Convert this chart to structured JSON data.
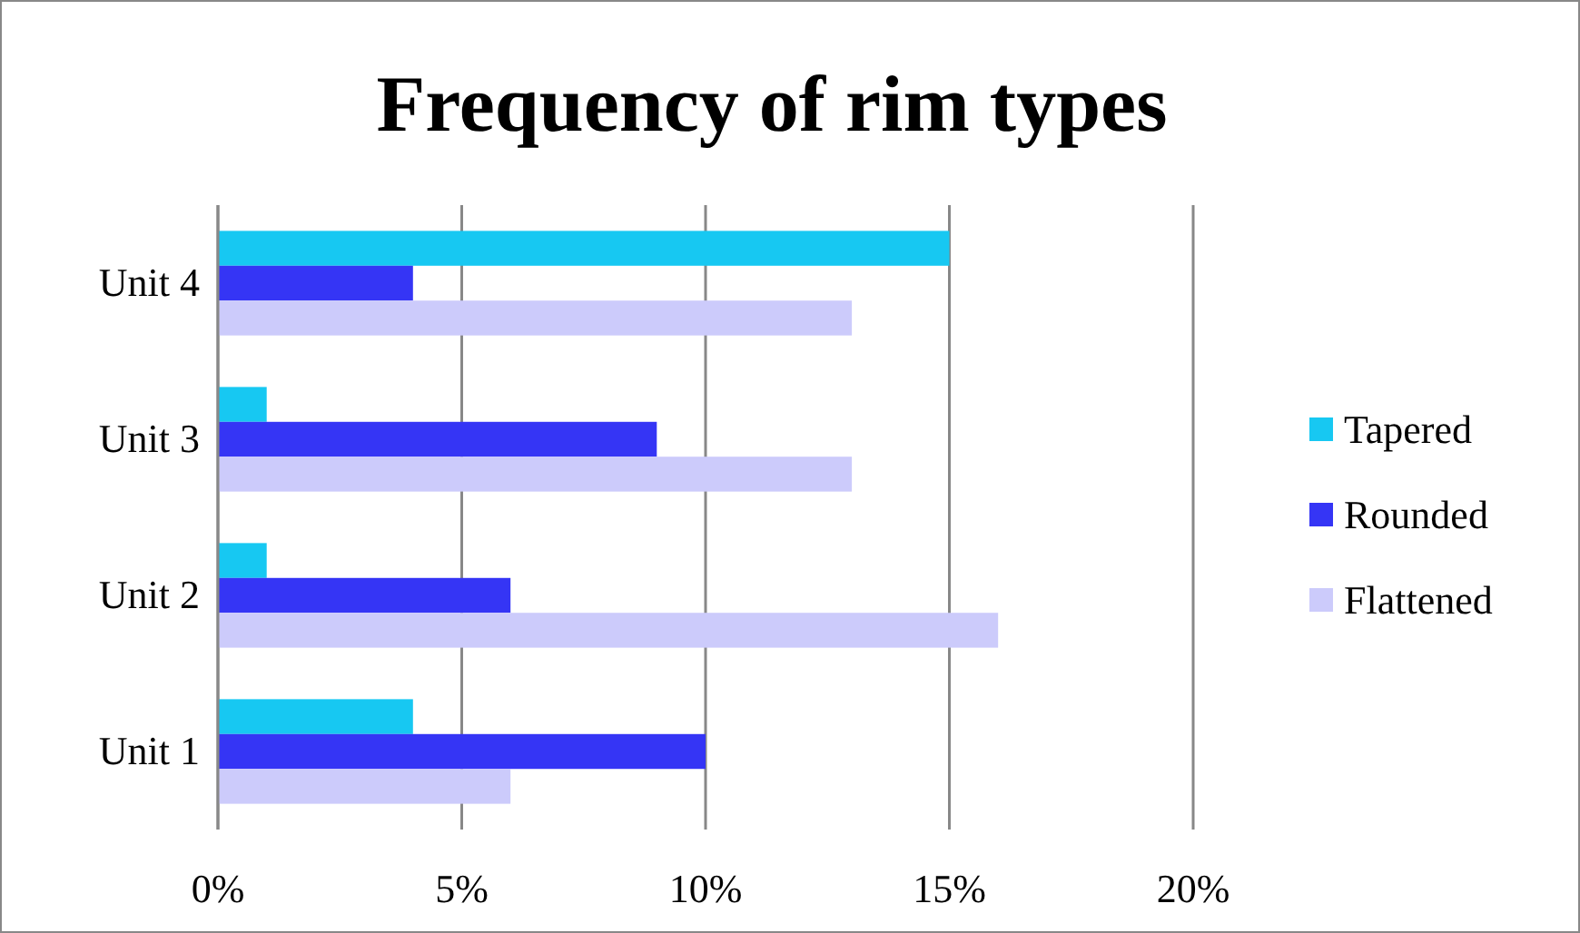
{
  "chart_data": {
    "type": "bar",
    "orientation": "horizontal",
    "title": "Frequency of rim types",
    "categories": [
      "Unit 4",
      "Unit 3",
      "Unit 2",
      "Unit 1"
    ],
    "series": [
      {
        "name": "Tapered",
        "color": "#17c8f2",
        "values": [
          15,
          1,
          1,
          4
        ]
      },
      {
        "name": "Rounded",
        "color": "#3535f5",
        "values": [
          4,
          9,
          6,
          10
        ]
      },
      {
        "name": "Flattened",
        "color": "#cccbfb",
        "values": [
          13,
          13,
          16,
          6
        ]
      }
    ],
    "xlim": [
      0,
      20
    ],
    "xticks": [
      {
        "value": 0,
        "label": "0%"
      },
      {
        "value": 5,
        "label": "5%"
      },
      {
        "value": 10,
        "label": "10%"
      },
      {
        "value": 15,
        "label": "15%"
      },
      {
        "value": 20,
        "label": "20%"
      }
    ],
    "grid": "x",
    "legend": "right"
  }
}
